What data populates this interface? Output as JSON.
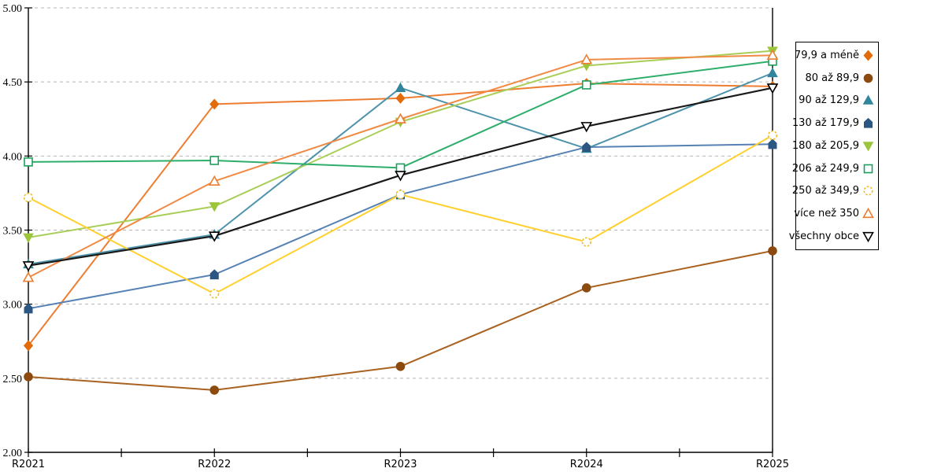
{
  "chart_data": {
    "type": "line",
    "title": "",
    "xlabel": "",
    "ylabel": "",
    "categories": [
      "R2021",
      "R2022",
      "R2023",
      "R2024",
      "R2025"
    ],
    "y_ticks": [
      "5.00",
      "4.50",
      "4.00",
      "3.50",
      "3.00",
      "2.50",
      "2.00"
    ],
    "ylim": [
      2.0,
      5.0
    ],
    "grid": "horizontal-dashed",
    "grid_color": "#b5b5b5",
    "axis_color": "#000000",
    "legend_position": "right-outside",
    "series": [
      {
        "name": "79,9 a méně",
        "marker": "diamond",
        "marker_style": "solid",
        "line_color": "#ed7d31",
        "marker_color": "#e26b0a",
        "values": [
          2.72,
          4.35,
          4.39,
          4.49,
          4.47
        ]
      },
      {
        "name": "80 až 89,9",
        "marker": "circle",
        "marker_style": "solid",
        "line_color": "#a9621f",
        "marker_color": "#8c4a0e",
        "values": [
          2.51,
          2.42,
          2.58,
          3.11,
          3.36
        ]
      },
      {
        "name": "90 až 129,9",
        "marker": "triangle-up",
        "marker_style": "solid",
        "line_color": "#4e93ac",
        "marker_color": "#31859c",
        "values": [
          3.27,
          3.47,
          4.46,
          4.05,
          4.56
        ]
      },
      {
        "name": "130 až 179,9",
        "marker": "pentagon",
        "marker_style": "solid",
        "line_color": "#5581b3",
        "marker_color": "#2b5783",
        "values": [
          2.97,
          3.2,
          3.74,
          4.06,
          4.08
        ]
      },
      {
        "name": "180 až 205,9",
        "marker": "triangle-down",
        "marker_style": "solid",
        "line_color": "#a9ce58",
        "marker_color": "#9cc53c",
        "values": [
          3.45,
          3.66,
          4.23,
          4.61,
          4.71
        ]
      },
      {
        "name": "206 až 249,9",
        "marker": "square",
        "marker_style": "hollow",
        "line_color": "#2eae6a",
        "marker_color": "#1ba05b",
        "values": [
          3.96,
          3.97,
          3.92,
          4.48,
          4.64
        ]
      },
      {
        "name": "250 až 349,9",
        "marker": "circle",
        "marker_style": "hollow-dashed",
        "line_color": "#ffd02e",
        "marker_color": "#f2bd1d",
        "values": [
          3.72,
          3.07,
          3.74,
          3.42,
          4.14
        ]
      },
      {
        "name": "více než 350",
        "marker": "triangle-up",
        "marker_style": "hollow",
        "line_color": "#f08a45",
        "marker_color": "#ed7d31",
        "values": [
          3.18,
          3.83,
          4.25,
          4.65,
          4.68
        ]
      },
      {
        "name": "všechny obce",
        "marker": "triangle-down",
        "marker_style": "hollow",
        "line_color": "#1a1a1a",
        "marker_color": "#000000",
        "values": [
          3.26,
          3.46,
          3.87,
          4.2,
          4.46
        ]
      }
    ]
  }
}
